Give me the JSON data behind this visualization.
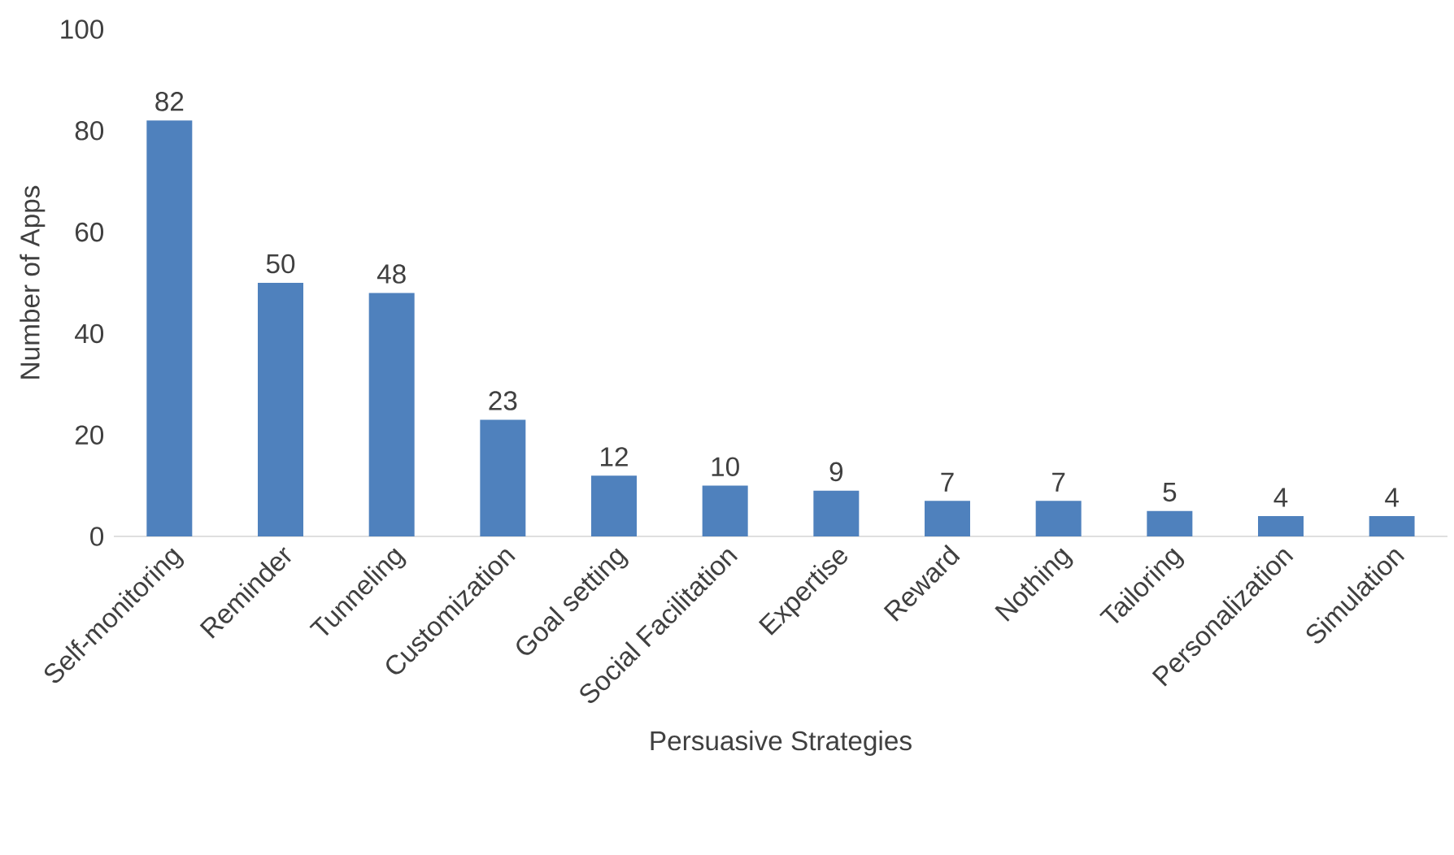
{
  "chart_data": {
    "type": "bar",
    "xlabel": "Persuasive Strategies",
    "ylabel": "Number of Apps",
    "categories": [
      "Self-monitoring",
      "Reminder",
      "Tunneling",
      "Customization",
      "Goal setting",
      "Social Facilitation",
      "Expertise",
      "Reward",
      "Nothing",
      "Tailoring",
      "Personalization",
      "Simulation"
    ],
    "values": [
      82,
      50,
      48,
      23,
      12,
      10,
      9,
      7,
      7,
      5,
      4,
      4
    ],
    "color": "#4f81bd",
    "ylim": [
      0,
      100
    ],
    "yticks": [
      0,
      20,
      40,
      60,
      80,
      100
    ],
    "data_labels": true
  }
}
